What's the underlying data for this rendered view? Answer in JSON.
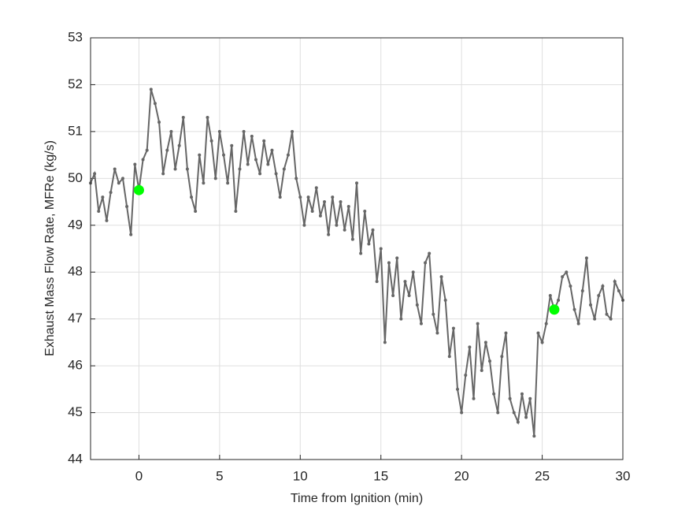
{
  "chart_data": {
    "type": "line",
    "xlabel": "Time from Ignition (min)",
    "ylabel": "Exhaust Mass Flow Rate, MFRe (kg/s)",
    "xlim": [
      -3,
      30
    ],
    "ylim": [
      44,
      53
    ],
    "xticks": [
      0,
      5,
      10,
      15,
      20,
      25,
      30
    ],
    "yticks": [
      44,
      45,
      46,
      47,
      48,
      49,
      50,
      51,
      52,
      53
    ],
    "grid": true,
    "series": [
      {
        "color": "#666666",
        "marker": true,
        "x": [
          -3,
          -2.75,
          -2.5,
          -2.25,
          -2,
          -1.75,
          -1.5,
          -1.25,
          -1,
          -0.75,
          -0.5,
          -0.25,
          0,
          0.25,
          0.5,
          0.75,
          1,
          1.25,
          1.5,
          1.75,
          2,
          2.25,
          2.5,
          2.75,
          3,
          3.25,
          3.5,
          3.75,
          4,
          4.25,
          4.5,
          4.75,
          5,
          5.25,
          5.5,
          5.75,
          6,
          6.25,
          6.5,
          6.75,
          7,
          7.25,
          7.5,
          7.75,
          8,
          8.25,
          8.5,
          8.75,
          9,
          9.25,
          9.5,
          9.75,
          10,
          10.25,
          10.5,
          10.75,
          11,
          11.25,
          11.5,
          11.75,
          12,
          12.25,
          12.5,
          12.75,
          13,
          13.25,
          13.5,
          13.75,
          14,
          14.25,
          14.5,
          14.75,
          15,
          15.25,
          15.5,
          15.75,
          16,
          16.25,
          16.5,
          16.75,
          17,
          17.25,
          17.5,
          17.75,
          18,
          18.25,
          18.5,
          18.75,
          19,
          19.25,
          19.5,
          19.75,
          20,
          20.25,
          20.5,
          20.75,
          21,
          21.25,
          21.5,
          21.75,
          22,
          22.25,
          22.5,
          22.75,
          23,
          23.25,
          23.5,
          23.75,
          24,
          24.25,
          24.5,
          24.75,
          25,
          25.25,
          25.5,
          25.75,
          26,
          26.25,
          26.5,
          26.75,
          27,
          27.25,
          27.5,
          27.75,
          28,
          28.25,
          28.5,
          28.75,
          29,
          29.25,
          29.5,
          29.75,
          30
        ],
        "values": [
          49.9,
          50.1,
          49.3,
          49.6,
          49.1,
          49.7,
          50.2,
          49.9,
          50.0,
          49.4,
          48.8,
          50.3,
          49.75,
          50.4,
          50.6,
          51.9,
          51.6,
          51.2,
          50.1,
          50.6,
          51.0,
          50.2,
          50.7,
          51.3,
          50.2,
          49.6,
          49.3,
          50.5,
          49.9,
          51.3,
          50.8,
          50.0,
          51.0,
          50.5,
          49.9,
          50.7,
          49.3,
          50.2,
          51.0,
          50.3,
          50.9,
          50.4,
          50.1,
          50.8,
          50.3,
          50.6,
          50.1,
          49.6,
          50.2,
          50.5,
          51.0,
          50.0,
          49.6,
          49.0,
          49.6,
          49.3,
          49.8,
          49.2,
          49.5,
          48.8,
          49.6,
          49.0,
          49.5,
          48.9,
          49.4,
          48.7,
          49.9,
          48.4,
          49.3,
          48.6,
          48.9,
          47.8,
          48.5,
          46.5,
          48.2,
          47.5,
          48.3,
          47.0,
          47.8,
          47.5,
          48.0,
          47.3,
          46.9,
          48.2,
          48.4,
          47.1,
          46.7,
          47.9,
          47.4,
          46.2,
          46.8,
          45.5,
          45.0,
          45.8,
          46.4,
          45.3,
          46.9,
          45.9,
          46.5,
          46.1,
          45.4,
          45.0,
          46.2,
          46.7,
          45.3,
          45.0,
          44.8,
          45.4,
          44.9,
          45.3,
          44.5,
          46.7,
          46.5,
          46.9,
          47.5,
          47.2,
          47.4,
          47.9,
          48.0,
          47.7,
          47.2,
          46.9,
          47.6,
          48.3,
          47.3,
          47.0,
          47.5,
          47.7,
          47.1,
          47.0,
          47.8,
          47.6,
          47.4
        ]
      },
      {
        "color": "#00ff00",
        "marker": true,
        "line": false,
        "x": [
          0,
          25.75
        ],
        "values": [
          49.75,
          47.2
        ]
      }
    ]
  }
}
